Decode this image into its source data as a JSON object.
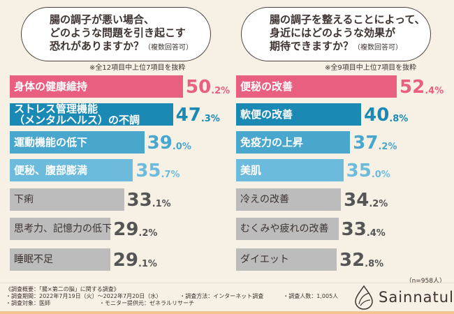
{
  "colors": {
    "pink": "#e85f7f",
    "dark_blue": "#1a8ab5",
    "mid_blue": "#49a6cd",
    "light_blue": "#6cbbdd",
    "gray": "#bcbcbc",
    "gray_text": "#555555"
  },
  "chart_data": [
    {
      "type": "bar",
      "orientation": "horizontal",
      "title": "腸の調子が悪い場合、どのような問題を引き起こす恐れがありますか？",
      "title_lines": [
        "腸の調子が悪い場合、",
        "どのような問題を引き起こす",
        "恐れがありますか？"
      ],
      "title_suffix": "（複数回答可）",
      "note": "※全12項目中上位7項目を抜粋",
      "unit": "%",
      "categories": [
        "身体の健康維持",
        "ストレス管理機能\n（メンタルヘルス）の不調",
        "運動機能の低下",
        "便秘、腹部膨満",
        "下痢",
        "思考力、記憶力の低下",
        "睡眠不足"
      ],
      "values": [
        50.2,
        47.3,
        39.0,
        35.7,
        33.1,
        29.2,
        29.1
      ],
      "value_labels": [
        [
          "50",
          ".2%"
        ],
        [
          "47",
          ".3%"
        ],
        [
          "39",
          ".0%"
        ],
        [
          "35",
          ".7%"
        ],
        [
          "33",
          ".1%"
        ],
        [
          "29",
          ".2%"
        ],
        [
          "29",
          ".1%"
        ]
      ]
    },
    {
      "type": "bar",
      "orientation": "horizontal",
      "title": "腸の調子を整えることによって、身近にはどのような効果が期待できますか？",
      "title_lines": [
        "腸の調子を整えることによって、",
        "身近にはどのような効果が",
        "期待できますか？"
      ],
      "title_suffix": "（複数回答可）",
      "note": "※全9項目中上位7項目を抜粋",
      "unit": "%",
      "categories": [
        "便秘の改善",
        "軟便の改善",
        "免疫力の上昇",
        "美肌",
        "冷えの改善",
        "むくみや疲れの改善",
        "ダイエット"
      ],
      "values": [
        52.4,
        40.8,
        37.2,
        35.0,
        34.2,
        33.4,
        32.8
      ],
      "value_labels": [
        [
          "52",
          ".4%"
        ],
        [
          "40",
          ".8%"
        ],
        [
          "37",
          ".2%"
        ],
        [
          "35",
          ".0%"
        ],
        [
          "34",
          ".2%"
        ],
        [
          "33",
          ".4%"
        ],
        [
          "32",
          ".8%"
        ]
      ]
    }
  ],
  "sample": "（n=958人）",
  "footer": {
    "line1": "《調査概要：「腸×第二の脳」に関する調査》",
    "period": "・調査期間：2022年7月19日（火）～2022年7月20日（水）",
    "method": "・調査方法：インターネット調査",
    "count": "・調査人数：1,005人",
    "target": "・調査対象：医師",
    "provider": "・モニター提供元：ゼネラルリサーチ"
  },
  "logo": "Sainnatul"
}
